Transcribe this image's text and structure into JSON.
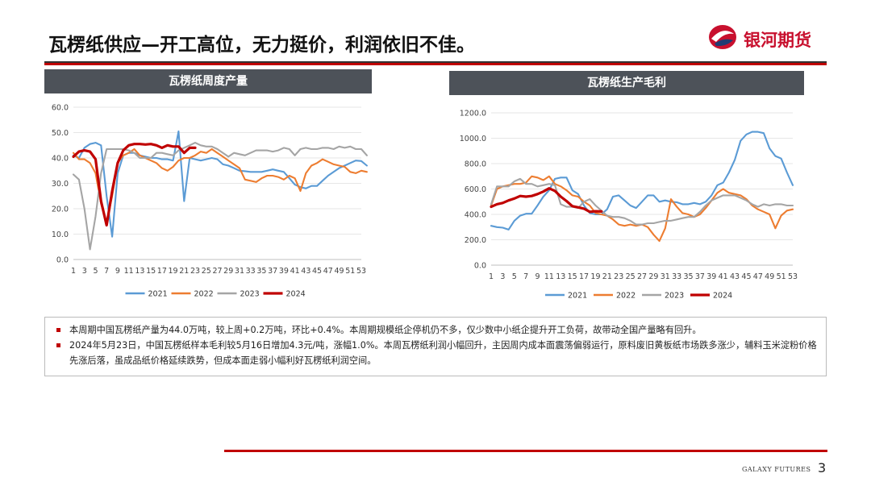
{
  "header": {
    "title": "瓦楞纸供应—开工高位，无力挺价，利润依旧不佳。",
    "logo_text": "银河期货"
  },
  "footer": {
    "brand": "GALAXY FUTURES",
    "page_number": "3"
  },
  "colors": {
    "2021": "#5b9bd5",
    "2022": "#ed7d31",
    "2023": "#a5a5a5",
    "2024": "#c00000"
  },
  "notes": [
    "本周期中国瓦楞纸产量为44.0万吨，较上周+0.2万吨，环比+0.4%。本周期规模纸企停机仍不多，仅少数中小纸企提升开工负荷，故带动全国产量略有回升。",
    "2024年5月23日，中国瓦楞纸样本毛利较5月16日增加4.3元/吨，涨幅1.0%。本周瓦楞纸利润小幅回升，主因周内成本面震荡偏弱运行，原料废旧黄板纸市场跌多涨少，辅料玉米淀粉价格先涨后落，虽成品纸价格延续跌势，但成本面走弱小幅利好瓦楞纸利润空间。"
  ],
  "chart_data": [
    {
      "type": "line",
      "title": "瓦楞纸周度产量",
      "ylim": [
        0,
        60
      ],
      "yticks": [
        "0.0",
        "10.0",
        "20.0",
        "30.0",
        "40.0",
        "50.0",
        "60.0"
      ],
      "xticks": [
        "1",
        "3",
        "5",
        "7",
        "9",
        "11",
        "13",
        "15",
        "17",
        "19",
        "21",
        "23",
        "25",
        "27",
        "29",
        "31",
        "33",
        "35",
        "37",
        "39",
        "41",
        "43",
        "45",
        "47",
        "49",
        "51",
        "53"
      ],
      "legend": "bottom",
      "series": [
        {
          "name": "2021",
          "values": [
            41,
            40,
            44,
            45.5,
            46,
            45,
            25,
            9,
            34,
            41,
            42,
            42,
            41,
            40.5,
            40,
            40,
            39.5,
            39.5,
            39,
            50.5,
            23,
            40,
            39.5,
            39,
            39.5,
            40,
            39.5,
            37.5,
            37,
            36,
            35,
            34.8,
            34.5,
            34.5,
            34.5,
            35,
            35.5,
            35,
            34.5,
            32,
            29.5,
            28.5,
            28,
            29,
            29,
            31,
            33,
            34.5,
            36,
            37,
            38,
            39,
            38.8,
            37
          ]
        },
        {
          "name": "2022",
          "values": [
            42,
            39.5,
            39.5,
            38,
            34,
            22,
            14.5,
            25,
            38,
            41,
            42,
            43.5,
            41,
            40,
            39,
            38,
            36,
            35,
            36.5,
            39,
            40,
            40,
            41,
            42.5,
            42,
            43.5,
            42,
            40.5,
            39,
            37.5,
            36,
            31.5,
            31,
            30.5,
            32,
            33,
            33,
            32.5,
            31.5,
            33,
            32,
            27,
            34,
            37,
            38,
            39.5,
            38.5,
            37.5,
            37,
            36.5,
            34.5,
            34,
            35,
            34.5
          ]
        },
        {
          "name": "2023",
          "values": [
            33.5,
            31.5,
            20,
            4,
            17,
            34,
            43.5,
            43.5,
            43.5,
            43.5,
            43,
            42,
            40,
            40,
            40,
            42,
            42,
            41.5,
            41,
            43,
            44,
            45,
            46,
            45,
            44.5,
            44.5,
            43.5,
            42,
            40.5,
            42,
            41.5,
            41,
            42,
            43,
            43,
            43,
            42.5,
            43,
            44,
            43.5,
            41,
            43.5,
            44,
            43.5,
            43.5,
            44,
            44,
            43.5,
            44.5,
            44,
            44.5,
            43.5,
            43.5,
            41
          ]
        },
        {
          "name": "2024",
          "values": [
            40.5,
            42.5,
            43,
            42.5,
            39.5,
            23,
            13.5,
            27,
            38,
            43,
            45,
            45.5,
            45.5,
            45.3,
            45.5,
            45,
            44,
            45,
            44.5,
            44.5,
            42,
            44,
            44
          ]
        }
      ]
    },
    {
      "type": "line",
      "title": "瓦楞纸生产毛利",
      "ylim": [
        0,
        1200
      ],
      "yticks": [
        "0.0",
        "200.0",
        "400.0",
        "600.0",
        "800.0",
        "1000.0",
        "1200.0"
      ],
      "xticks": [
        "1",
        "3",
        "5",
        "7",
        "9",
        "11",
        "13",
        "15",
        "17",
        "19",
        "21",
        "23",
        "25",
        "27",
        "29",
        "31",
        "33",
        "35",
        "37",
        "39",
        "41",
        "43",
        "45",
        "47",
        "49",
        "51",
        "53"
      ],
      "legend": "bottom",
      "series": [
        {
          "name": "2021",
          "values": [
            310,
            300,
            295,
            280,
            350,
            390,
            405,
            405,
            470,
            540,
            590,
            680,
            690,
            690,
            590,
            560,
            470,
            410,
            400,
            400,
            440,
            540,
            550,
            510,
            470,
            450,
            500,
            550,
            550,
            500,
            510,
            500,
            495,
            480,
            480,
            490,
            480,
            500,
            550,
            630,
            650,
            730,
            830,
            980,
            1030,
            1050,
            1050,
            1040,
            920,
            860,
            840,
            730,
            630
          ]
        },
        {
          "name": "2022",
          "values": [
            470,
            600,
            620,
            630,
            640,
            640,
            650,
            700,
            690,
            670,
            700,
            640,
            620,
            590,
            550,
            540,
            500,
            470,
            410,
            400,
            390,
            360,
            320,
            310,
            320,
            310,
            320,
            300,
            240,
            190,
            290,
            520,
            460,
            410,
            400,
            380,
            400,
            450,
            510,
            570,
            600,
            570,
            560,
            550,
            520,
            470,
            440,
            420,
            400,
            290,
            390,
            430,
            440
          ]
        },
        {
          "name": "2023",
          "values": [
            480,
            620,
            620,
            620,
            660,
            680,
            640,
            640,
            620,
            630,
            640,
            630,
            480,
            460,
            460,
            450,
            500,
            520,
            470,
            430,
            390,
            380,
            380,
            370,
            350,
            320,
            320,
            330,
            330,
            340,
            350,
            350,
            360,
            370,
            380,
            380,
            420,
            470,
            510,
            530,
            550,
            550,
            550,
            530,
            510,
            480,
            460,
            480,
            470,
            480,
            480,
            470,
            470
          ]
        },
        {
          "name": "2024",
          "values": [
            460,
            480,
            490,
            510,
            525,
            545,
            540,
            545,
            560,
            580,
            605,
            585,
            540,
            505,
            465,
            455,
            445,
            420,
            425,
            423
          ]
        }
      ]
    }
  ]
}
